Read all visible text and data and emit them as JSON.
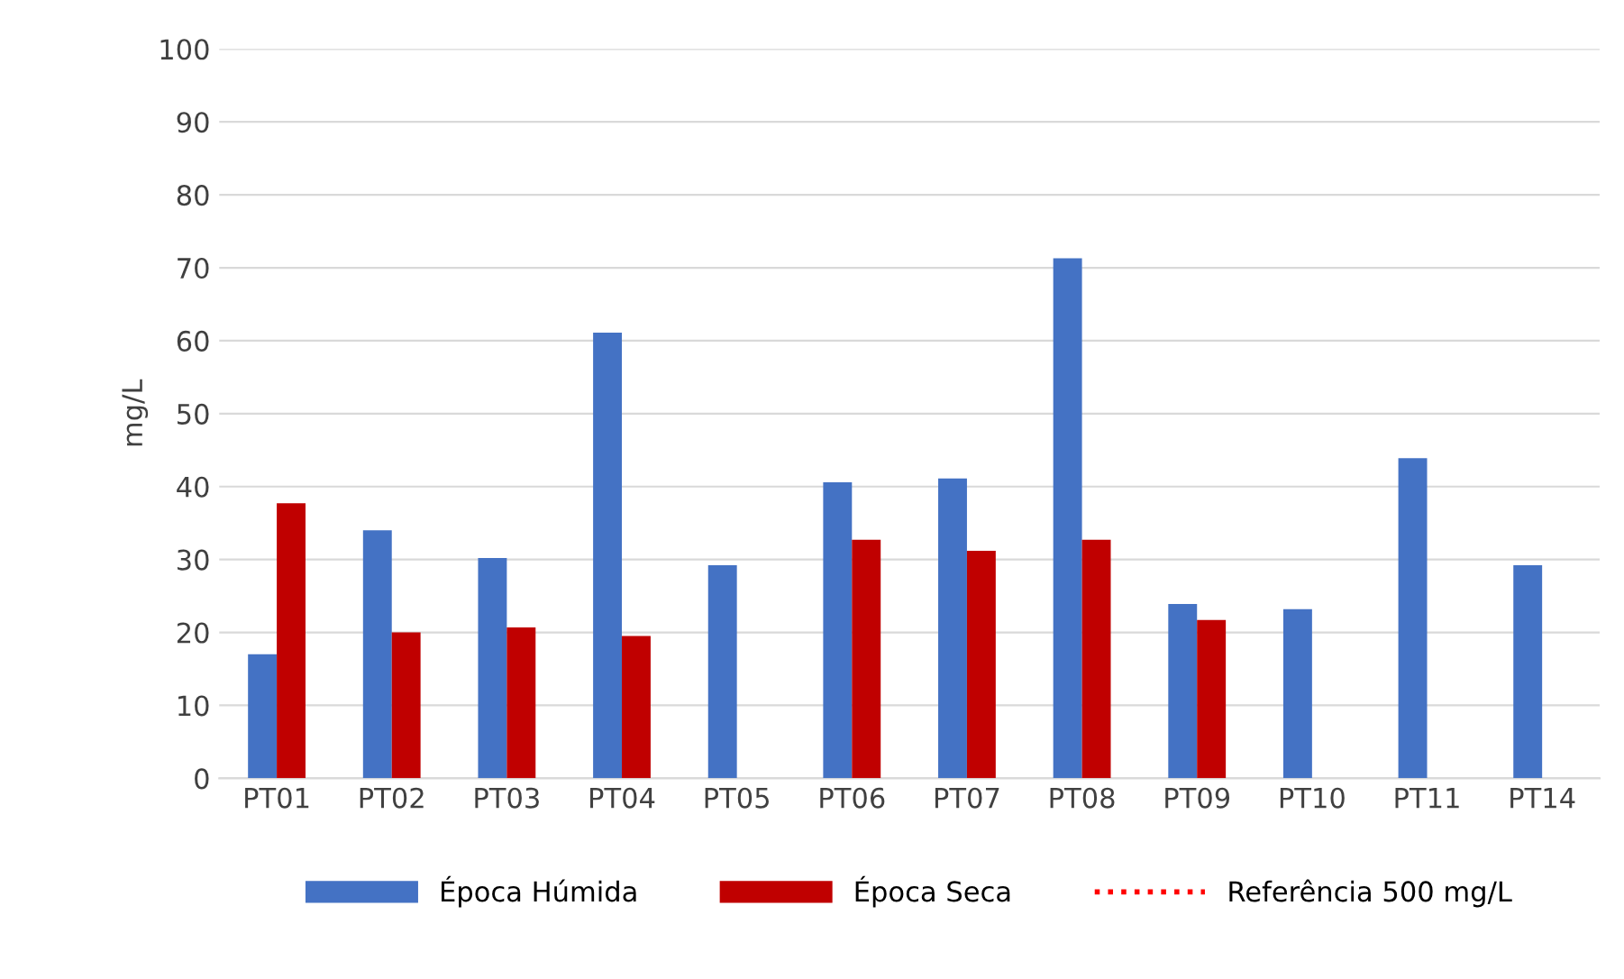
{
  "chart_data": {
    "type": "bar",
    "ylabel": "mg/L",
    "categories": [
      "PT01",
      "PT02",
      "PT03",
      "PT04",
      "PT05",
      "PT06",
      "PT07",
      "PT08",
      "PT09",
      "PT10",
      "PT11",
      "PT14"
    ],
    "series": [
      {
        "name": "Época Húmida",
        "color": "#4472c4",
        "values": [
          17.0,
          34.0,
          30.2,
          61.1,
          29.2,
          40.6,
          41.1,
          71.3,
          23.9,
          23.2,
          43.9,
          29.2
        ]
      },
      {
        "name": "Época Seca",
        "color": "#c00000",
        "values": [
          37.7,
          20.0,
          20.7,
          19.5,
          null,
          32.7,
          31.2,
          32.7,
          21.7,
          null,
          null,
          null
        ]
      },
      {
        "type": "line",
        "name": "Referência 500 mg/L",
        "color": "#ff0000",
        "line_style": "dotted",
        "values": [
          null,
          null,
          null,
          null,
          null,
          null,
          null,
          null,
          null,
          null,
          null,
          null
        ]
      }
    ],
    "ylim": [
      0,
      100
    ],
    "yticks": [
      0,
      10,
      20,
      30,
      40,
      50,
      60,
      70,
      80,
      90,
      100
    ],
    "grid": "y",
    "legend": "bottom"
  }
}
